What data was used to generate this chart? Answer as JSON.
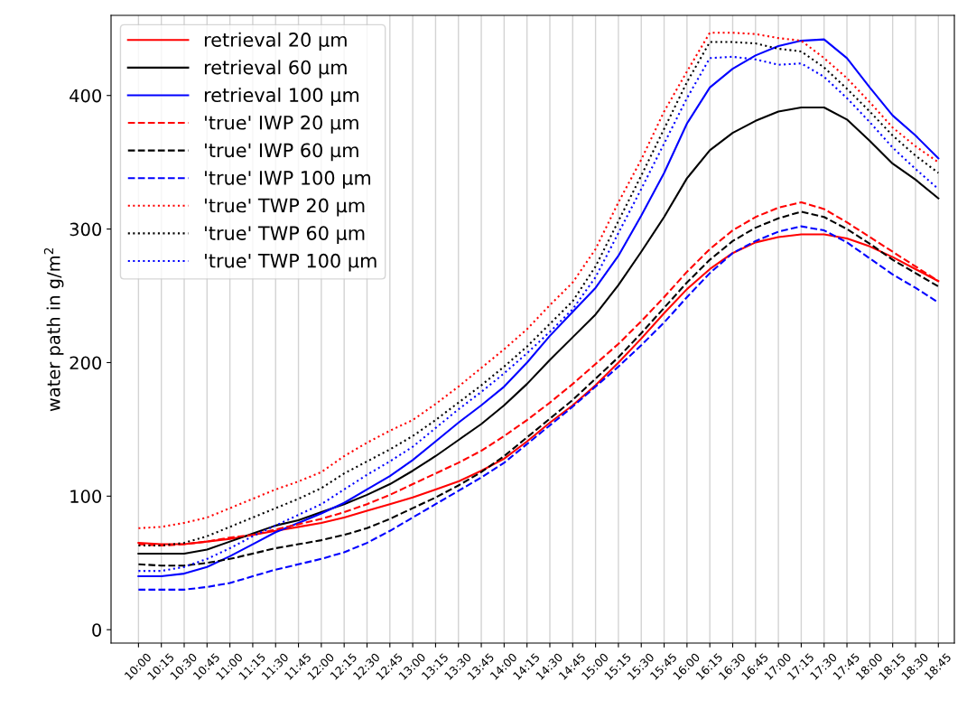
{
  "chart_data": {
    "type": "line",
    "ylabel": "water path in g/m$^{2}$",
    "categories": [
      "10:00",
      "10:15",
      "10:30",
      "10:45",
      "11:00",
      "11:15",
      "11:30",
      "11:45",
      "12:00",
      "12:15",
      "12:30",
      "12:45",
      "13:00",
      "13:15",
      "13:30",
      "13:45",
      "14:00",
      "14:15",
      "14:30",
      "14:45",
      "15:00",
      "15:15",
      "15:30",
      "15:45",
      "16:00",
      "16:15",
      "16:30",
      "16:45",
      "17:00",
      "17:15",
      "17:30",
      "17:45",
      "18:00",
      "18:15",
      "18:30",
      "18:45"
    ],
    "ylim": [
      -10,
      460
    ],
    "yticks": [
      0,
      100,
      200,
      300,
      400
    ],
    "grid": "x",
    "legend": "top left",
    "series": [
      {
        "name": "retrieval 20 µm",
        "color": "#ff0000",
        "line_style": "solid",
        "values": [
          65,
          64,
          64,
          66,
          68,
          71,
          74,
          77,
          80,
          84,
          89,
          94,
          99,
          105,
          111,
          119,
          128,
          141,
          155,
          168,
          183,
          200,
          218,
          237,
          255,
          270,
          282,
          290,
          294,
          296,
          296,
          293,
          287,
          279,
          270,
          261
        ]
      },
      {
        "name": "retrieval 60 µm",
        "color": "#000000",
        "line_style": "solid",
        "values": [
          57,
          57,
          57,
          60,
          66,
          72,
          78,
          82,
          88,
          94,
          101,
          109,
          119,
          130,
          142,
          154,
          168,
          184,
          202,
          219,
          236,
          258,
          283,
          309,
          338,
          359,
          372,
          381,
          388,
          391,
          391,
          382,
          366,
          349,
          337,
          323
        ]
      },
      {
        "name": "retrieval 100 µm",
        "color": "#0000ff",
        "line_style": "solid",
        "values": [
          40,
          40,
          42,
          47,
          55,
          64,
          73,
          80,
          87,
          95,
          105,
          115,
          127,
          141,
          155,
          168,
          182,
          200,
          220,
          238,
          256,
          280,
          310,
          342,
          379,
          406,
          420,
          430,
          437,
          441,
          442,
          428,
          406,
          385,
          370,
          353
        ]
      },
      {
        "name": "'true' IWP 20 µm",
        "color": "#ff0000",
        "line_style": "dashed",
        "values": [
          64,
          63,
          64,
          66,
          69,
          71,
          75,
          79,
          83,
          88,
          94,
          101,
          109,
          117,
          125,
          134,
          145,
          157,
          170,
          184,
          199,
          214,
          231,
          249,
          268,
          285,
          299,
          309,
          316,
          320,
          315,
          305,
          294,
          283,
          272,
          261
        ]
      },
      {
        "name": "'true' IWP 60 µm",
        "color": "#000000",
        "line_style": "dashed",
        "values": [
          49,
          48,
          48,
          50,
          53,
          57,
          61,
          64,
          67,
          71,
          76,
          83,
          91,
          99,
          108,
          118,
          130,
          144,
          158,
          172,
          188,
          204,
          222,
          241,
          260,
          277,
          291,
          301,
          308,
          313,
          309,
          300,
          289,
          277,
          267,
          257
        ]
      },
      {
        "name": "'true' IWP 100 µm",
        "color": "#0000ff",
        "line_style": "dashed",
        "values": [
          30,
          30,
          30,
          32,
          35,
          40,
          45,
          49,
          53,
          58,
          65,
          74,
          84,
          94,
          104,
          114,
          125,
          139,
          153,
          167,
          182,
          197,
          213,
          230,
          249,
          267,
          282,
          291,
          298,
          302,
          299,
          290,
          278,
          266,
          256,
          245
        ]
      },
      {
        "name": "'true' TWP 20 µm",
        "color": "#ff0000",
        "line_style": "dotted",
        "values": [
          76,
          77,
          80,
          84,
          91,
          98,
          105,
          111,
          118,
          130,
          140,
          149,
          157,
          169,
          182,
          196,
          210,
          225,
          243,
          260,
          285,
          320,
          352,
          388,
          418,
          447,
          447,
          446,
          443,
          441,
          428,
          413,
          395,
          376,
          362,
          350
        ]
      },
      {
        "name": "'true' TWP 60 µm",
        "color": "#000000",
        "line_style": "dotted",
        "values": [
          63,
          63,
          65,
          70,
          77,
          84,
          91,
          98,
          106,
          117,
          126,
          135,
          145,
          157,
          170,
          183,
          197,
          212,
          229,
          246,
          272,
          306,
          340,
          375,
          410,
          440,
          440,
          439,
          435,
          433,
          421,
          405,
          388,
          370,
          355,
          342
        ]
      },
      {
        "name": "'true' TWP 100 µm",
        "color": "#0000ff",
        "line_style": "dotted",
        "values": [
          44,
          44,
          47,
          53,
          61,
          70,
          78,
          86,
          94,
          105,
          116,
          126,
          137,
          151,
          165,
          178,
          192,
          207,
          223,
          240,
          264,
          297,
          330,
          364,
          398,
          428,
          429,
          427,
          423,
          424,
          414,
          398,
          380,
          361,
          345,
          330
        ]
      }
    ]
  }
}
